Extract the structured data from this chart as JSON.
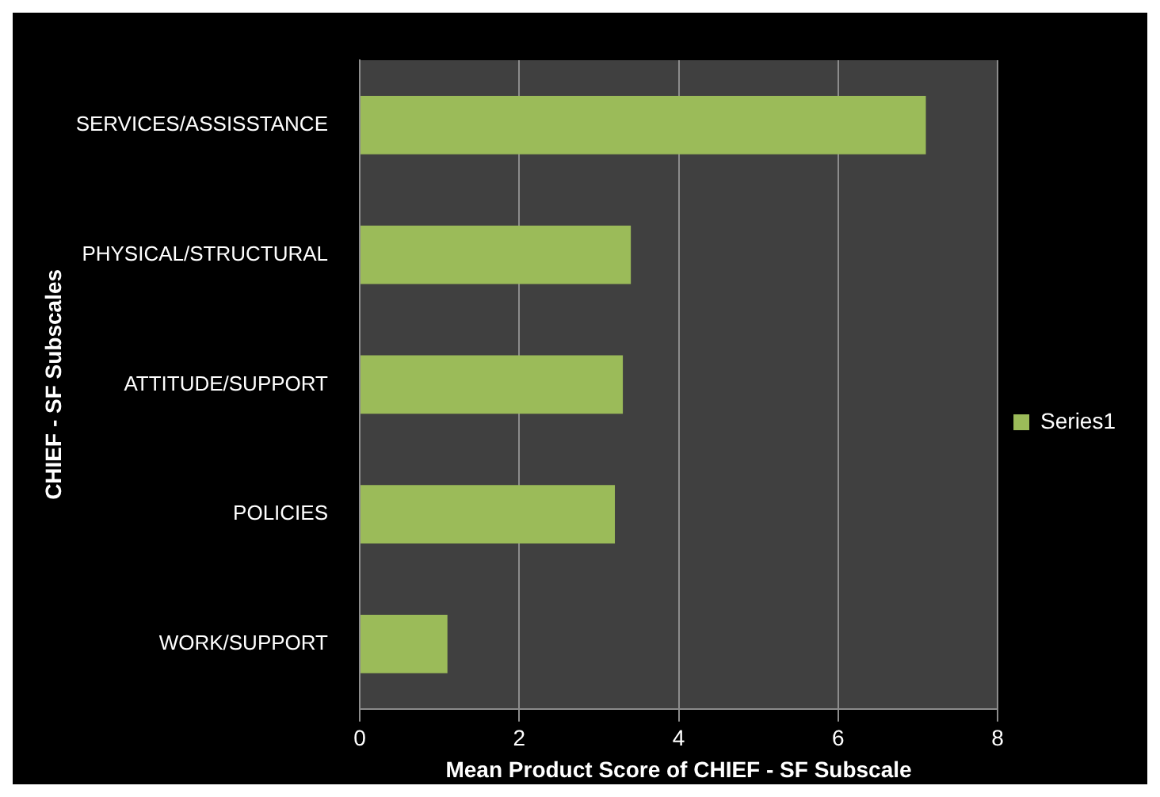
{
  "chart_data": {
    "type": "bar",
    "orientation": "horizontal",
    "categories": [
      "SERVICES/ASSISSTANCE",
      "PHYSICAL/STRUCTURAL",
      "ATTITUDE/SUPPORT",
      "POLICIES",
      "WORK/SUPPORT"
    ],
    "series": [
      {
        "name": "Series1",
        "color": "#9bbb59",
        "values": [
          7.1,
          3.4,
          3.3,
          3.2,
          1.1
        ]
      }
    ],
    "xlim": [
      0,
      8
    ],
    "xticks": [
      0,
      2,
      4,
      6,
      8
    ],
    "xlabel": "Mean Product Score of CHIEF - SF Subscale",
    "ylabel": "CHIEF - SF Subscales",
    "grid": "x",
    "legend": "right"
  }
}
